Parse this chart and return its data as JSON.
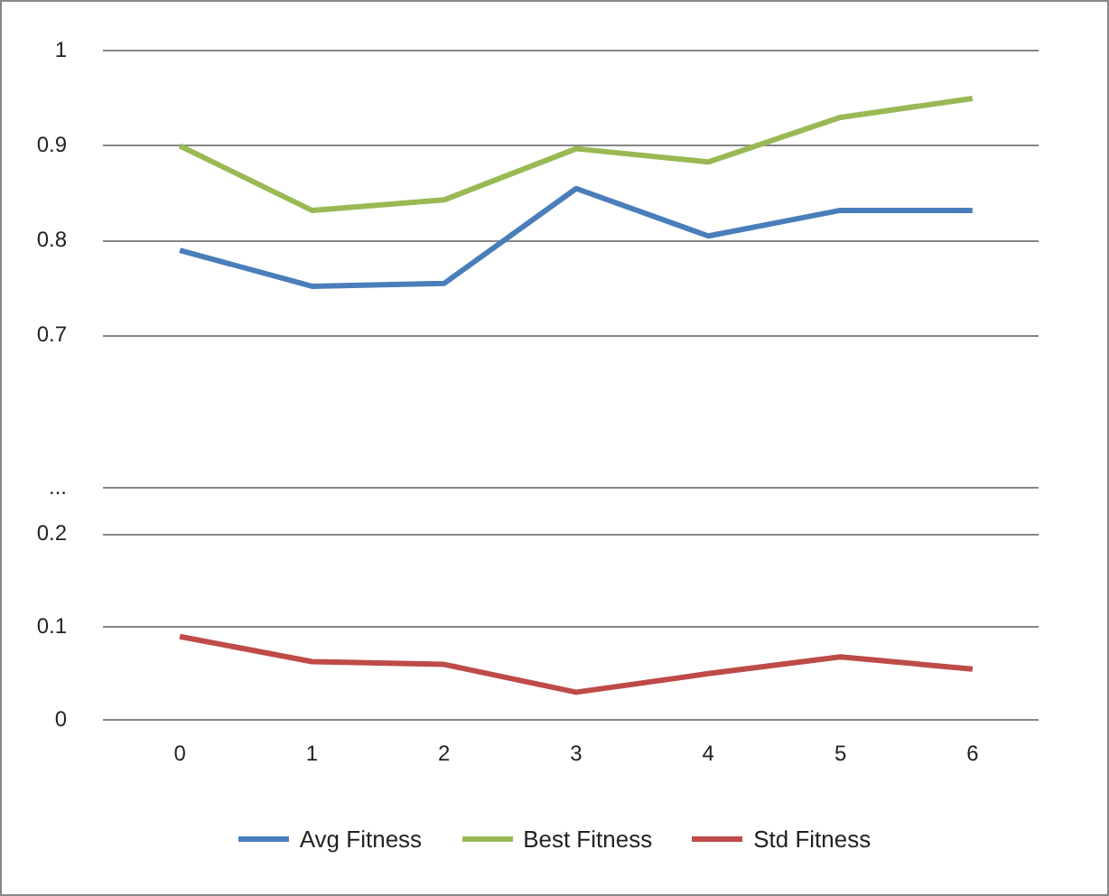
{
  "chart_data": [
    {
      "type": "line",
      "categories": [
        "0",
        "1",
        "2",
        "3",
        "4",
        "5",
        "6"
      ],
      "series": [
        {
          "name": "Avg Fitness",
          "color": "#4a7ebb",
          "values": [
            0.79,
            0.752,
            0.755,
            0.855,
            0.805,
            0.832,
            0.832
          ]
        },
        {
          "name": "Best Fitness",
          "color": "#98b954",
          "values": [
            0.9,
            0.832,
            0.843,
            0.897,
            0.883,
            0.93,
            0.95
          ]
        }
      ],
      "ylim": [
        0.7,
        1
      ],
      "yticks": [
        0.7,
        0.8,
        0.9,
        1
      ],
      "grid": "y",
      "tick_labels": "y",
      "legend": "bottom",
      "marker": "none",
      "line_style": "solid"
    },
    {
      "type": "line",
      "categories": [
        "0",
        "1",
        "2",
        "3",
        "4",
        "5",
        "6"
      ],
      "series": [
        {
          "name": "Std Fitness",
          "color": "#be4b48",
          "values": [
            0.09,
            0.063,
            0.06,
            0.03,
            0.05,
            0.068,
            0.055
          ]
        }
      ],
      "ylim": [
        0,
        0.25
      ],
      "yticks": [
        0,
        0.1,
        0.2,
        {
          "value": 0.25,
          "label": "..."
        }
      ],
      "grid": "y",
      "legend": "bottom",
      "marker": "none",
      "line_style": "solid"
    }
  ]
}
